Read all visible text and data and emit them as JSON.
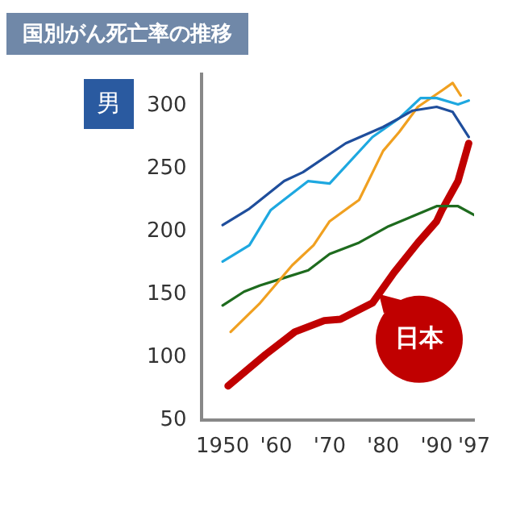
{
  "chart_data": {
    "type": "line",
    "title": "国別がん死亡率の推移",
    "annotations": [
      "男"
    ],
    "xlim": [
      1946,
      1997
    ],
    "xticks": [
      {
        "value": 1950,
        "label": "1950"
      },
      {
        "value": 1960,
        "label": "'60"
      },
      {
        "value": 1970,
        "label": "'70"
      },
      {
        "value": 1980,
        "label": "'80"
      },
      {
        "value": 1990,
        "label": "'90"
      },
      {
        "value": 1997,
        "label": "'97"
      }
    ],
    "ylim": [
      50,
      325
    ],
    "yticks": [
      50,
      100,
      150,
      200,
      250,
      300
    ],
    "grid": false,
    "legend": "bottom right",
    "marker": "none",
    "line_style": "solid",
    "series": [
      {
        "color": "#1f4e9c",
        "x": [
          1950,
          1955,
          1961.5,
          1965,
          1973,
          1980,
          1983,
          1985.5,
          1990,
          1993,
          1996
        ],
        "values": [
          205,
          218,
          240,
          247,
          270,
          283,
          290,
          296,
          299,
          295,
          275
        ]
      },
      {
        "color": "#1ea8e0",
        "x": [
          1950,
          1955,
          1959,
          1966,
          1970,
          1978,
          1983,
          1987,
          1990,
          1994,
          1996
        ],
        "values": [
          176,
          189,
          217,
          240,
          238,
          275,
          290,
          306,
          306,
          301,
          304
        ]
      },
      {
        "color": "#f0a020",
        "x": [
          1951.5,
          1957,
          1963,
          1967,
          1970,
          1975.5,
          1980,
          1983,
          1986.5,
          1991,
          1993,
          1994.5
        ],
        "values": [
          120,
          143,
          173,
          189,
          208,
          225,
          264,
          279,
          299,
          312,
          318,
          308
        ]
      },
      {
        "color": "#1e6b1e",
        "x": [
          1950,
          1954,
          1957,
          1961.5,
          1966,
          1970,
          1975.5,
          1981,
          1985.5,
          1990,
          1994,
          1997
        ],
        "values": [
          141,
          152,
          157,
          163,
          169,
          182,
          191,
          204,
          212,
          220,
          220,
          213
        ]
      },
      {
        "name": "日本",
        "color": "#c00000",
        "x": [
          1951,
          1958,
          1963.5,
          1969,
          1972,
          1978,
          1982,
          1986.5,
          1990,
          1991,
          1994,
          1996
        ],
        "values": [
          77,
          102,
          120,
          129,
          130,
          143,
          167,
          191,
          208,
          217,
          240,
          270
        ]
      }
    ]
  }
}
